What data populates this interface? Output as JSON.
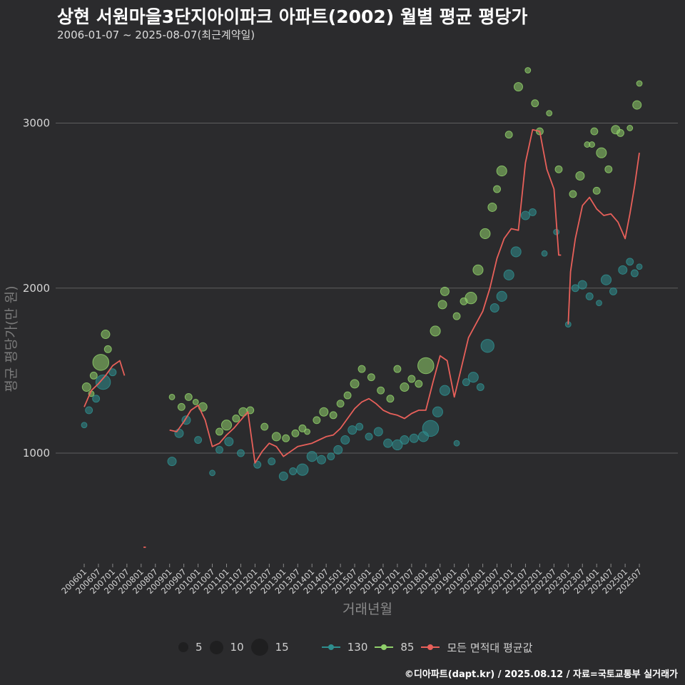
{
  "title": "상현 서원마을3단지아이파크 아파트(2002) 월별 평균 평당가",
  "subtitle": "2006-01-07 ~ 2025-08-07(최근계약일)",
  "source": "©디아파트(dapt.kr) / 2025.08.12 / 자료=국토교통부 실거래가",
  "legend": {
    "size_labels": [
      "5",
      "10",
      "15"
    ],
    "series_labels": [
      "130",
      "85",
      "모든 면적대 평균값"
    ]
  },
  "colors": {
    "background": "#2b2b2d",
    "series_130": "#2f8e8e",
    "series_85": "#8fcf6a",
    "series_avg": "#e8605a",
    "grid": "#5e5e5e"
  },
  "chart_data": {
    "type": "scatter",
    "title": "상현 서원마을3단지아이파크 아파트(2002) 월별 평균 평당가",
    "xlabel": "거래년월",
    "ylabel": "평균 평당가(만 원)",
    "ylim": [
      330,
      3400
    ],
    "yticks": [
      1000,
      2000,
      3000
    ],
    "x_tick_labels": [
      "200601",
      "200607",
      "200701",
      "200707",
      "200801",
      "200807",
      "200901",
      "200907",
      "201001",
      "201007",
      "201101",
      "201107",
      "201201",
      "201207",
      "201301",
      "201307",
      "201401",
      "201407",
      "201501",
      "201507",
      "201601",
      "201607",
      "201701",
      "201707",
      "201801",
      "201807",
      "201901",
      "201907",
      "202001",
      "202007",
      "202101",
      "202107",
      "202201",
      "202207",
      "202301",
      "202307",
      "202401",
      "202407",
      "202501",
      "202507"
    ],
    "grid": "horizontal",
    "legend_position": "bottom",
    "series": [
      {
        "name": "모든 면적대 평균값",
        "kind": "line",
        "segments": [
          [
            [
              "2006-01",
              1280
            ],
            [
              "2006-04",
              1380
            ],
            [
              "2006-07",
              1420
            ],
            [
              "2006-10",
              1470
            ],
            [
              "2007-01",
              1530
            ],
            [
              "2007-04",
              1560
            ],
            [
              "2007-06",
              1470
            ]
          ],
          [
            [
              "2008-02",
              430
            ],
            [
              "2008-03",
              430
            ]
          ],
          [
            [
              "2009-01",
              1140
            ],
            [
              "2009-04",
              1130
            ],
            [
              "2009-07",
              1190
            ],
            [
              "2009-10",
              1260
            ],
            [
              "2010-01",
              1290
            ],
            [
              "2010-04",
              1200
            ],
            [
              "2010-07",
              1040
            ],
            [
              "2010-10",
              1060
            ],
            [
              "2011-01",
              1110
            ],
            [
              "2011-04",
              1150
            ],
            [
              "2011-07",
              1200
            ],
            [
              "2011-10",
              1250
            ],
            [
              "2012-01",
              940
            ],
            [
              "2012-04",
              1010
            ],
            [
              "2012-07",
              1060
            ],
            [
              "2012-10",
              1040
            ],
            [
              "2013-01",
              980
            ],
            [
              "2013-04",
              1010
            ],
            [
              "2013-07",
              1040
            ],
            [
              "2013-10",
              1050
            ],
            [
              "2014-01",
              1060
            ],
            [
              "2014-04",
              1080
            ],
            [
              "2014-07",
              1100
            ],
            [
              "2014-10",
              1110
            ],
            [
              "2015-01",
              1150
            ],
            [
              "2015-04",
              1210
            ],
            [
              "2015-07",
              1270
            ],
            [
              "2015-10",
              1310
            ],
            [
              "2016-01",
              1330
            ],
            [
              "2016-04",
              1300
            ],
            [
              "2016-07",
              1260
            ],
            [
              "2016-10",
              1240
            ],
            [
              "2017-01",
              1230
            ],
            [
              "2017-04",
              1210
            ],
            [
              "2017-07",
              1240
            ],
            [
              "2017-10",
              1260
            ],
            [
              "2018-01",
              1260
            ],
            [
              "2018-04",
              1430
            ],
            [
              "2018-07",
              1590
            ],
            [
              "2018-10",
              1560
            ],
            [
              "2019-01",
              1340
            ],
            [
              "2019-04",
              1520
            ],
            [
              "2019-07",
              1700
            ],
            [
              "2019-10",
              1780
            ],
            [
              "2020-01",
              1860
            ],
            [
              "2020-04",
              2000
            ],
            [
              "2020-07",
              2180
            ],
            [
              "2020-10",
              2300
            ],
            [
              "2021-01",
              2360
            ],
            [
              "2021-04",
              2350
            ],
            [
              "2021-07",
              2760
            ],
            [
              "2021-10",
              2960
            ],
            [
              "2022-01",
              2950
            ],
            [
              "2022-04",
              2720
            ],
            [
              "2022-07",
              2600
            ],
            [
              "2022-09",
              2200
            ],
            [
              "2022-10",
              2200
            ]
          ],
          [
            [
              "2023-01",
              1780
            ],
            [
              "2023-02",
              2100
            ],
            [
              "2023-04",
              2300
            ],
            [
              "2023-07",
              2500
            ],
            [
              "2023-10",
              2550
            ],
            [
              "2024-01",
              2480
            ],
            [
              "2024-04",
              2440
            ],
            [
              "2024-07",
              2450
            ],
            [
              "2024-10",
              2400
            ],
            [
              "2025-01",
              2300
            ],
            [
              "2025-03",
              2450
            ],
            [
              "2025-05",
              2620
            ],
            [
              "2025-07",
              2820
            ]
          ]
        ]
      },
      {
        "name": "85",
        "kind": "scatter",
        "points": [
          [
            "2006-02",
            1400,
            4
          ],
          [
            "2006-05",
            1470,
            3
          ],
          [
            "2006-08",
            1550,
            9
          ],
          [
            "2006-10",
            1720,
            4
          ],
          [
            "2006-11",
            1630,
            3
          ],
          [
            "2006-04",
            1360,
            2
          ],
          [
            "2009-02",
            1340,
            2
          ],
          [
            "2009-06",
            1280,
            3
          ],
          [
            "2009-09",
            1340,
            3
          ],
          [
            "2009-12",
            1310,
            2
          ],
          [
            "2010-03",
            1280,
            4
          ],
          [
            "2010-10",
            1130,
            3
          ],
          [
            "2011-01",
            1170,
            5
          ],
          [
            "2011-05",
            1210,
            3
          ],
          [
            "2011-08",
            1250,
            4
          ],
          [
            "2011-11",
            1260,
            3
          ],
          [
            "2012-05",
            1160,
            3
          ],
          [
            "2012-10",
            1100,
            4
          ],
          [
            "2013-02",
            1090,
            3
          ],
          [
            "2013-06",
            1120,
            3
          ],
          [
            "2013-09",
            1150,
            3
          ],
          [
            "2013-11",
            1130,
            2
          ],
          [
            "2014-03",
            1200,
            3
          ],
          [
            "2014-06",
            1250,
            4
          ],
          [
            "2014-10",
            1230,
            3
          ],
          [
            "2015-01",
            1300,
            3
          ],
          [
            "2015-04",
            1350,
            3
          ],
          [
            "2015-07",
            1420,
            4
          ],
          [
            "2015-10",
            1510,
            3
          ],
          [
            "2016-02",
            1460,
            3
          ],
          [
            "2016-06",
            1380,
            3
          ],
          [
            "2016-10",
            1330,
            3
          ],
          [
            "2017-01",
            1510,
            3
          ],
          [
            "2017-04",
            1400,
            4
          ],
          [
            "2017-07",
            1450,
            3
          ],
          [
            "2017-10",
            1420,
            3
          ],
          [
            "2018-01",
            1530,
            9
          ],
          [
            "2018-05",
            1740,
            5
          ],
          [
            "2018-08",
            1900,
            4
          ],
          [
            "2018-09",
            1980,
            4
          ],
          [
            "2019-02",
            1830,
            3
          ],
          [
            "2019-05",
            1920,
            3
          ],
          [
            "2019-08",
            1940,
            6
          ],
          [
            "2019-11",
            2110,
            5
          ],
          [
            "2020-02",
            2330,
            5
          ],
          [
            "2020-05",
            2490,
            4
          ],
          [
            "2020-07",
            2600,
            3
          ],
          [
            "2020-09",
            2710,
            5
          ],
          [
            "2020-12",
            2930,
            3
          ],
          [
            "2021-04",
            3220,
            4
          ],
          [
            "2021-08",
            3320,
            2
          ],
          [
            "2021-11",
            3120,
            3
          ],
          [
            "2022-01",
            2950,
            3
          ],
          [
            "2022-05",
            3060,
            2
          ],
          [
            "2022-09",
            2720,
            3
          ],
          [
            "2023-03",
            2570,
            3
          ],
          [
            "2023-06",
            2680,
            4
          ],
          [
            "2023-09",
            2870,
            2
          ],
          [
            "2023-12",
            2950,
            3
          ],
          [
            "2024-03",
            2820,
            5
          ],
          [
            "2024-06",
            2720,
            3
          ],
          [
            "2024-09",
            2960,
            4
          ],
          [
            "2024-11",
            2940,
            3
          ],
          [
            "2025-03",
            2970,
            2
          ],
          [
            "2025-06",
            3110,
            4
          ],
          [
            "2025-07",
            3240,
            2
          ],
          [
            "2024-01",
            2590,
            3
          ],
          [
            "2023-11",
            2870,
            2
          ]
        ]
      },
      {
        "name": "130",
        "kind": "scatter",
        "points": [
          [
            "2006-01",
            1170,
            2
          ],
          [
            "2006-03",
            1260,
            3
          ],
          [
            "2006-06",
            1330,
            3
          ],
          [
            "2006-09",
            1430,
            8
          ],
          [
            "2007-01",
            1490,
            3
          ],
          [
            "2009-02",
            950,
            4
          ],
          [
            "2009-05",
            1120,
            4
          ],
          [
            "2009-08",
            1200,
            4
          ],
          [
            "2010-01",
            1080,
            3
          ],
          [
            "2010-07",
            880,
            2
          ],
          [
            "2010-10",
            1020,
            3
          ],
          [
            "2011-02",
            1070,
            4
          ],
          [
            "2011-07",
            1000,
            3
          ],
          [
            "2012-02",
            930,
            3
          ],
          [
            "2012-08",
            950,
            3
          ],
          [
            "2013-01",
            860,
            4
          ],
          [
            "2013-05",
            890,
            3
          ],
          [
            "2013-09",
            900,
            6
          ],
          [
            "2014-01",
            980,
            5
          ],
          [
            "2014-05",
            960,
            4
          ],
          [
            "2014-09",
            980,
            3
          ],
          [
            "2014-12",
            1020,
            4
          ],
          [
            "2015-03",
            1080,
            4
          ],
          [
            "2015-06",
            1140,
            4
          ],
          [
            "2015-09",
            1160,
            3
          ],
          [
            "2016-01",
            1100,
            3
          ],
          [
            "2016-05",
            1130,
            4
          ],
          [
            "2016-09",
            1060,
            4
          ],
          [
            "2017-01",
            1050,
            5
          ],
          [
            "2017-04",
            1080,
            4
          ],
          [
            "2017-08",
            1090,
            4
          ],
          [
            "2017-12",
            1100,
            5
          ],
          [
            "2018-03",
            1150,
            9
          ],
          [
            "2018-06",
            1250,
            5
          ],
          [
            "2018-09",
            1380,
            5
          ],
          [
            "2019-02",
            1060,
            2
          ],
          [
            "2019-06",
            1430,
            3
          ],
          [
            "2019-09",
            1460,
            5
          ],
          [
            "2019-12",
            1400,
            3
          ],
          [
            "2020-03",
            1650,
            7
          ],
          [
            "2020-06",
            1880,
            4
          ],
          [
            "2020-09",
            1950,
            5
          ],
          [
            "2020-12",
            2080,
            5
          ],
          [
            "2021-03",
            2220,
            5
          ],
          [
            "2021-07",
            2440,
            4
          ],
          [
            "2021-10",
            2460,
            3
          ],
          [
            "2022-03",
            2210,
            2
          ],
          [
            "2022-08",
            2340,
            2
          ],
          [
            "2023-01",
            1780,
            2
          ],
          [
            "2023-04",
            2000,
            3
          ],
          [
            "2023-07",
            2020,
            4
          ],
          [
            "2023-10",
            1950,
            3
          ],
          [
            "2024-02",
            1910,
            2
          ],
          [
            "2024-05",
            2050,
            5
          ],
          [
            "2024-08",
            1980,
            3
          ],
          [
            "2024-12",
            2110,
            4
          ],
          [
            "2025-03",
            2160,
            3
          ],
          [
            "2025-05",
            2090,
            3
          ],
          [
            "2025-07",
            2130,
            2
          ]
        ]
      }
    ]
  }
}
